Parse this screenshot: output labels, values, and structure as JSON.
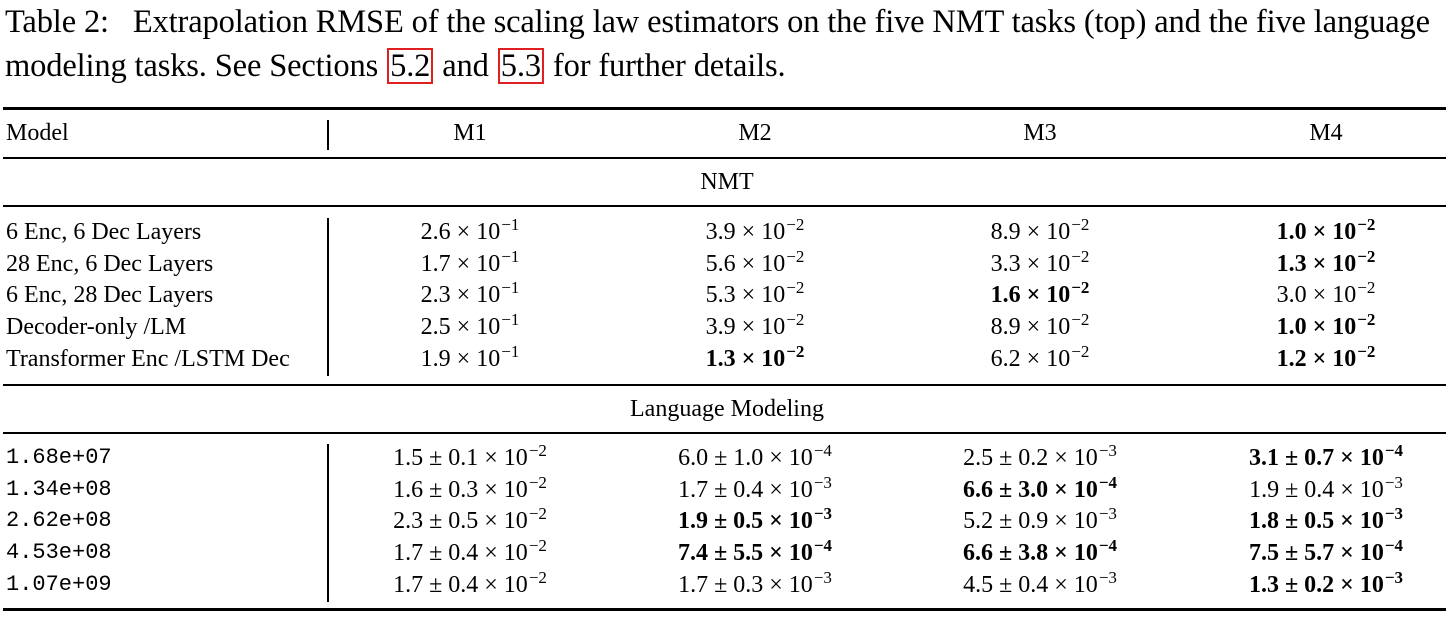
{
  "caption": {
    "prefix": "Table 2:",
    "text_before": "Extrapolation RMSE of the scaling law estimators on the five NMT tasks (top) and the five language modeling tasks. See Sections",
    "ref1": "5.2",
    "and": "and",
    "ref2": "5.3",
    "text_after": "for further details."
  },
  "table": {
    "headers": [
      "Model",
      "M1",
      "M2",
      "M3",
      "M4"
    ],
    "sections": [
      {
        "title": "NMT",
        "rows": [
          {
            "label": "6 Enc, 6 Dec Layers",
            "cells": [
              {
                "m": "2.6 × 10",
                "e": "−1",
                "bold": false
              },
              {
                "m": "3.9 × 10",
                "e": "−2",
                "bold": false
              },
              {
                "m": "8.9 × 10",
                "e": "−2",
                "bold": false
              },
              {
                "m": "1.0 × 10",
                "e": "−2",
                "bold": true
              }
            ]
          },
          {
            "label": "28 Enc, 6 Dec Layers",
            "cells": [
              {
                "m": "1.7 × 10",
                "e": "−1",
                "bold": false
              },
              {
                "m": "5.6 × 10",
                "e": "−2",
                "bold": false
              },
              {
                "m": "3.3 × 10",
                "e": "−2",
                "bold": false
              },
              {
                "m": "1.3 × 10",
                "e": "−2",
                "bold": true
              }
            ]
          },
          {
            "label": "6 Enc, 28 Dec Layers",
            "cells": [
              {
                "m": "2.3 × 10",
                "e": "−1",
                "bold": false
              },
              {
                "m": "5.3 × 10",
                "e": "−2",
                "bold": false
              },
              {
                "m": "1.6 × 10",
                "e": "−2",
                "bold": true
              },
              {
                "m": "3.0 × 10",
                "e": "−2",
                "bold": false
              }
            ]
          },
          {
            "label": "Decoder-only /LM",
            "cells": [
              {
                "m": "2.5 × 10",
                "e": "−1",
                "bold": false
              },
              {
                "m": "3.9 × 10",
                "e": "−2",
                "bold": false
              },
              {
                "m": "8.9 × 10",
                "e": "−2",
                "bold": false
              },
              {
                "m": "1.0 × 10",
                "e": "−2",
                "bold": true
              }
            ]
          },
          {
            "label": "Transformer Enc /LSTM Dec",
            "cells": [
              {
                "m": "1.9 × 10",
                "e": "−1",
                "bold": false
              },
              {
                "m": "1.3 × 10",
                "e": "−2",
                "bold": true
              },
              {
                "m": "6.2 × 10",
                "e": "−2",
                "bold": false
              },
              {
                "m": "1.2 × 10",
                "e": "−2",
                "bold": true
              }
            ]
          }
        ]
      },
      {
        "title": "Language Modeling",
        "rows": [
          {
            "label": "1.68e+07",
            "cells": [
              {
                "m": "1.5 ± 0.1 × 10",
                "e": "−2",
                "bold": false
              },
              {
                "m": "6.0 ± 1.0 × 10",
                "e": "−4",
                "bold": false
              },
              {
                "m": "2.5 ± 0.2 × 10",
                "e": "−3",
                "bold": false
              },
              {
                "m": "3.1 ± 0.7 × 10",
                "e": "−4",
                "bold": true
              }
            ]
          },
          {
            "label": "1.34e+08",
            "cells": [
              {
                "m": "1.6 ± 0.3 × 10",
                "e": "−2",
                "bold": false
              },
              {
                "m": "1.7 ± 0.4 × 10",
                "e": "−3",
                "bold": false
              },
              {
                "m": "6.6 ± 3.0 × 10",
                "e": "−4",
                "bold": true
              },
              {
                "m": "1.9 ± 0.4 × 10",
                "e": "−3",
                "bold": false
              }
            ]
          },
          {
            "label": "2.62e+08",
            "cells": [
              {
                "m": "2.3 ± 0.5 × 10",
                "e": "−2",
                "bold": false
              },
              {
                "m": "1.9 ± 0.5 × 10",
                "e": "−3",
                "bold": true
              },
              {
                "m": "5.2 ± 0.9 × 10",
                "e": "−3",
                "bold": false
              },
              {
                "m": "1.8 ± 0.5 × 10",
                "e": "−3",
                "bold": true
              }
            ]
          },
          {
            "label": "4.53e+08",
            "cells": [
              {
                "m": "1.7 ± 0.4 × 10",
                "e": "−2",
                "bold": false
              },
              {
                "m": "7.4 ± 5.5 × 10",
                "e": "−4",
                "bold": true
              },
              {
                "m": "6.6 ± 3.8 × 10",
                "e": "−4",
                "bold": true
              },
              {
                "m": "7.5 ± 5.7 × 10",
                "e": "−4",
                "bold": true
              }
            ]
          },
          {
            "label": "1.07e+09",
            "cells": [
              {
                "m": "1.7 ± 0.4 × 10",
                "e": "−2",
                "bold": false
              },
              {
                "m": "1.7 ± 0.3 × 10",
                "e": "−3",
                "bold": false
              },
              {
                "m": "4.5 ± 0.4 × 10",
                "e": "−3",
                "bold": false
              },
              {
                "m": "1.3 ± 0.2 × 10",
                "e": "−3",
                "bold": true
              }
            ]
          }
        ]
      }
    ]
  }
}
